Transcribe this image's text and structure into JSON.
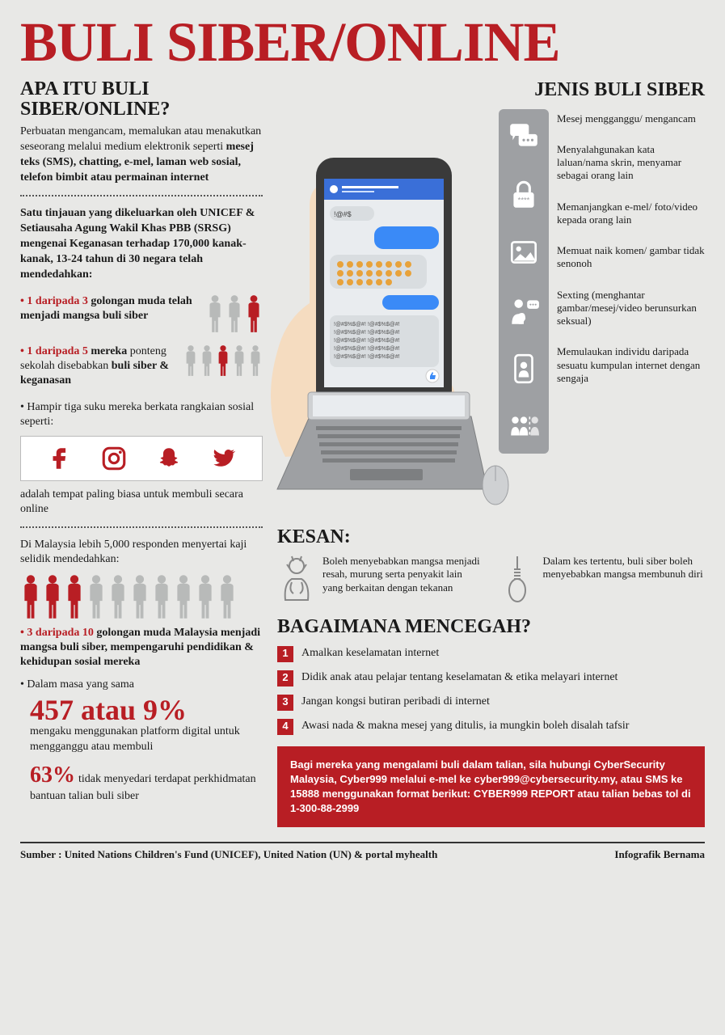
{
  "title": "BULI SIBER/ONLINE",
  "colors": {
    "accent": "#b81e24",
    "background": "#e8e8e6",
    "strip": "#9ea0a3",
    "person_grey": "#b8bab9",
    "person_red": "#b81e24",
    "text": "#1a1a1a",
    "white": "#ffffff"
  },
  "left": {
    "q_heading": "APA ITU BULI SIBER/ONLINE?",
    "definition_pre": "Perbuatan mengancam, memalukan atau menakutkan seseorang melalui medium elektronik seperti ",
    "definition_bold": "mesej teks (SMS), chatting, e-mel, laman web sosial, telefon bimbit atau permainan internet",
    "survey_intro": "Satu tinjauan yang dikeluarkan oleh UNICEF & Setiausaha Agung Wakil Khas PBB (SRSG) mengenai Keganasan terhadap 170,000 kanak-kanak, 13-24 tahun di 30 negara telah mendedahkan:",
    "stat1_lead": "1 daripada 3",
    "stat1_body": "golongan muda telah menjadi mangsa buli siber",
    "stat1_people": {
      "total": 3,
      "highlighted": [
        2
      ]
    },
    "stat2_lead": "1 daripada 5",
    "stat2_body": "mereka ponteng sekolah disebabkan buli siber & keganasan",
    "stat2_people": {
      "total": 5,
      "highlighted": [
        2
      ]
    },
    "social_intro": "Hampir tiga suku mereka berkata rangkaian sosial seperti:",
    "social_outro": "adalah tempat paling biasa untuk membuli secara online",
    "social_icons": [
      "facebook",
      "instagram",
      "snapchat",
      "twitter"
    ],
    "malaysia_intro": "Di Malaysia lebih 5,000 responden menyertai kaji selidik mendedahkan:",
    "stat3_people": {
      "total": 10,
      "highlighted": [
        0,
        1,
        2
      ]
    },
    "stat3_lead": "3 daripada 10",
    "stat3_body": "golongan muda Malaysia menjadi mangsa buli siber, mempengaruhi pendidikan & kehidupan sosial mereka",
    "stat4_intro": "Dalam masa yang sama",
    "stat4_big": "457 atau 9%",
    "stat4_body": "mengaku menggunakan platform digital untuk mengganggu atau membuli",
    "stat5_big": "63%",
    "stat5_body": "tidak menyedari terdapat perkhidmatan bantuan talian buli siber"
  },
  "right": {
    "jenis_heading": "JENIS BULI SIBER",
    "types": [
      {
        "icon": "chat",
        "text": "Mesej mengganggu/ mengancam"
      },
      {
        "icon": "lock",
        "text": "Menyalahgunakan kata laluan/nama skrin, menyamar sebagai orang lain"
      },
      {
        "icon": "image",
        "text": "Memanjangkan e-mel/ foto/video kepada orang lain"
      },
      {
        "icon": "person",
        "text": "Memuat naik komen/ gambar tidak senonoh"
      },
      {
        "icon": "phone",
        "text": "Sexting (menghantar gambar/mesej/video berunsurkan seksual)"
      },
      {
        "icon": "group",
        "text": "Memulaukan individu daripada sesuatu kumpulan internet dengan sengaja"
      }
    ],
    "kesan_heading": "KESAN:",
    "kesan": [
      {
        "icon": "sad",
        "text": "Boleh menyebabkan mangsa menjadi resah, murung serta penyakit lain yang berkaitan dengan tekanan"
      },
      {
        "icon": "noose",
        "text": "Dalam kes tertentu, buli siber boleh menyebabkan mangsa membunuh diri"
      }
    ],
    "prevent_heading": "BAGAIMANA MENCEGAH?",
    "prevent": [
      "Amalkan keselamatan internet",
      "Didik anak atau pelajar tentang keselamatan & etika melayari internet",
      "Jangan kongsi butiran peribadi di internet",
      "Awasi nada & makna mesej yang ditulis, ia mungkin boleh disalah tafsir"
    ],
    "contact": "Bagi mereka yang mengalami buli dalam talian, sila hubungi CyberSecurity Malaysia, Cyber999 melalui e-mel ke cyber999@cybersecurity.my, atau SMS ke 15888 menggunakan format berikut: CYBER999 REPORT atau talian bebas tol di 1-300-88-2999"
  },
  "footer": {
    "source": "Sumber : United Nations Children's Fund (UNICEF), United Nation (UN) & portal myhealth",
    "credit": "Infografik Bernama"
  }
}
